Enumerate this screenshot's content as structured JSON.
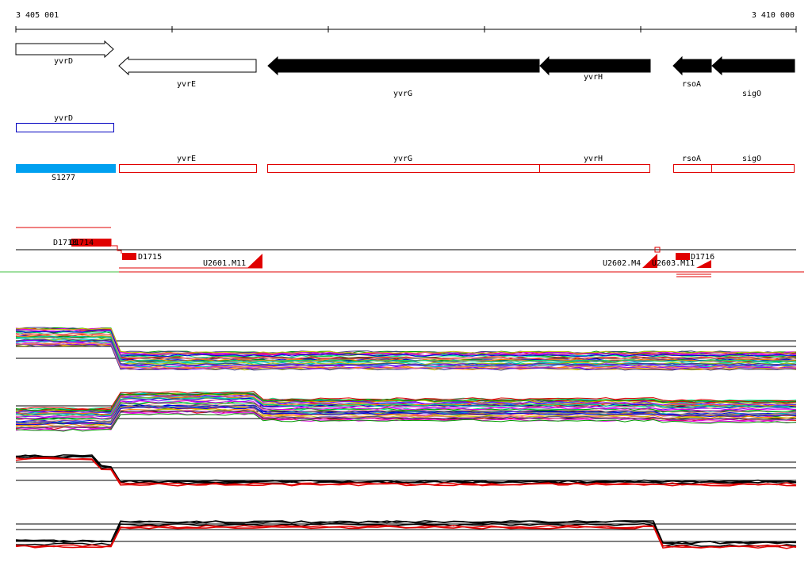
{
  "axis": {
    "start": "3 405 001",
    "end": "3 410 000"
  },
  "gene_track": [
    "yvrD",
    "yvrE",
    "yvrG",
    "yvrH",
    "rsoA",
    "sigO"
  ],
  "blue_track": [
    "yvrD"
  ],
  "feature_track": [
    "S1277",
    "yvrE",
    "yvrG",
    "yvrH",
    "rsoA",
    "sigO"
  ],
  "segment_track": [
    "D1713",
    "D1714",
    "D1715",
    "U2601.M11",
    "U2602.M4",
    "U2603.M11",
    "D1716"
  ]
}
